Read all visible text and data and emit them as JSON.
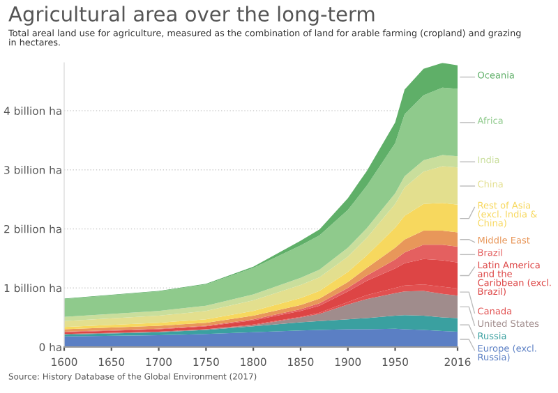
{
  "chart_data": {
    "type": "area",
    "stacked": true,
    "title": "Agricultural area over the long-term",
    "subtitle": "Total areal land use for agriculture, measured as the combination of land for arable farming (cropland) and grazing\nin hectares.",
    "annotations": [
      "Source: History Database of the Global Environment (2017)"
    ],
    "x": [
      1600,
      1700,
      1750,
      1800,
      1850,
      1870,
      1900,
      1920,
      1950,
      1960,
      1980,
      2000,
      2016
    ],
    "series": [
      {
        "name": "Europe (excl.\nRussia)",
        "color": "#5b7fc4",
        "values": [
          0.18,
          0.2,
          0.22,
          0.25,
          0.28,
          0.29,
          0.3,
          0.3,
          0.31,
          0.3,
          0.29,
          0.27,
          0.26
        ]
      },
      {
        "name": "Russia",
        "color": "#3aa0a0",
        "values": [
          0.03,
          0.05,
          0.07,
          0.1,
          0.14,
          0.15,
          0.17,
          0.19,
          0.22,
          0.24,
          0.24,
          0.23,
          0.23
        ]
      },
      {
        "name": "United States",
        "color": "#a08c8c",
        "values": [
          0.01,
          0.01,
          0.01,
          0.02,
          0.08,
          0.12,
          0.25,
          0.32,
          0.38,
          0.4,
          0.42,
          0.4,
          0.38
        ]
      },
      {
        "name": "Canada",
        "color": "#e15050",
        "values": [
          0.0,
          0.0,
          0.0,
          0.01,
          0.01,
          0.02,
          0.04,
          0.07,
          0.09,
          0.1,
          0.11,
          0.12,
          0.12
        ]
      },
      {
        "name": "Latin America\nand the\nCaribbean (excl.\nBrazil)",
        "color": "#dd4545",
        "values": [
          0.03,
          0.04,
          0.05,
          0.07,
          0.1,
          0.12,
          0.18,
          0.24,
          0.33,
          0.38,
          0.43,
          0.45,
          0.44
        ]
      },
      {
        "name": "Brazil",
        "color": "#e46060",
        "values": [
          0.01,
          0.01,
          0.01,
          0.02,
          0.03,
          0.04,
          0.06,
          0.09,
          0.15,
          0.18,
          0.24,
          0.26,
          0.27
        ]
      },
      {
        "name": "Middle East",
        "color": "#e8975a",
        "values": [
          0.04,
          0.05,
          0.05,
          0.06,
          0.07,
          0.08,
          0.1,
          0.13,
          0.2,
          0.22,
          0.24,
          0.24,
          0.24
        ]
      },
      {
        "name": "Rest of Asia\n(excl. India &\nChina)",
        "color": "#f7d85e",
        "values": [
          0.04,
          0.05,
          0.06,
          0.08,
          0.12,
          0.13,
          0.17,
          0.21,
          0.34,
          0.4,
          0.45,
          0.47,
          0.47
        ]
      },
      {
        "name": "China",
        "color": "#e3df8e",
        "values": [
          0.1,
          0.12,
          0.14,
          0.18,
          0.22,
          0.23,
          0.26,
          0.3,
          0.4,
          0.48,
          0.55,
          0.62,
          0.63
        ]
      },
      {
        "name": "India",
        "color": "#c9de9c",
        "values": [
          0.07,
          0.08,
          0.09,
          0.1,
          0.12,
          0.13,
          0.15,
          0.16,
          0.18,
          0.19,
          0.19,
          0.19,
          0.19
        ]
      },
      {
        "name": "Africa",
        "color": "#8fca8c",
        "values": [
          0.3,
          0.33,
          0.36,
          0.45,
          0.55,
          0.58,
          0.64,
          0.72,
          0.85,
          1.05,
          1.1,
          1.14,
          1.14
        ]
      },
      {
        "name": "Oceania",
        "color": "#5faf68",
        "values": [
          0.01,
          0.01,
          0.01,
          0.02,
          0.08,
          0.1,
          0.2,
          0.25,
          0.35,
          0.42,
          0.45,
          0.42,
          0.4
        ]
      }
    ],
    "xlim": [
      1600,
      2016
    ],
    "xticks": [
      1600,
      1650,
      1700,
      1750,
      1800,
      1850,
      1900,
      1950,
      2016
    ],
    "ylim": [
      0,
      4.81
    ],
    "yticks": [
      {
        "value": 0,
        "label": "0 ha"
      },
      {
        "value": 1,
        "label": "1 billion ha"
      },
      {
        "value": 2,
        "label": "2 billion ha"
      },
      {
        "value": 3,
        "label": "3 billion ha"
      },
      {
        "value": 4,
        "label": "4 billion ha"
      }
    ],
    "grid": "y",
    "legend": "right"
  }
}
